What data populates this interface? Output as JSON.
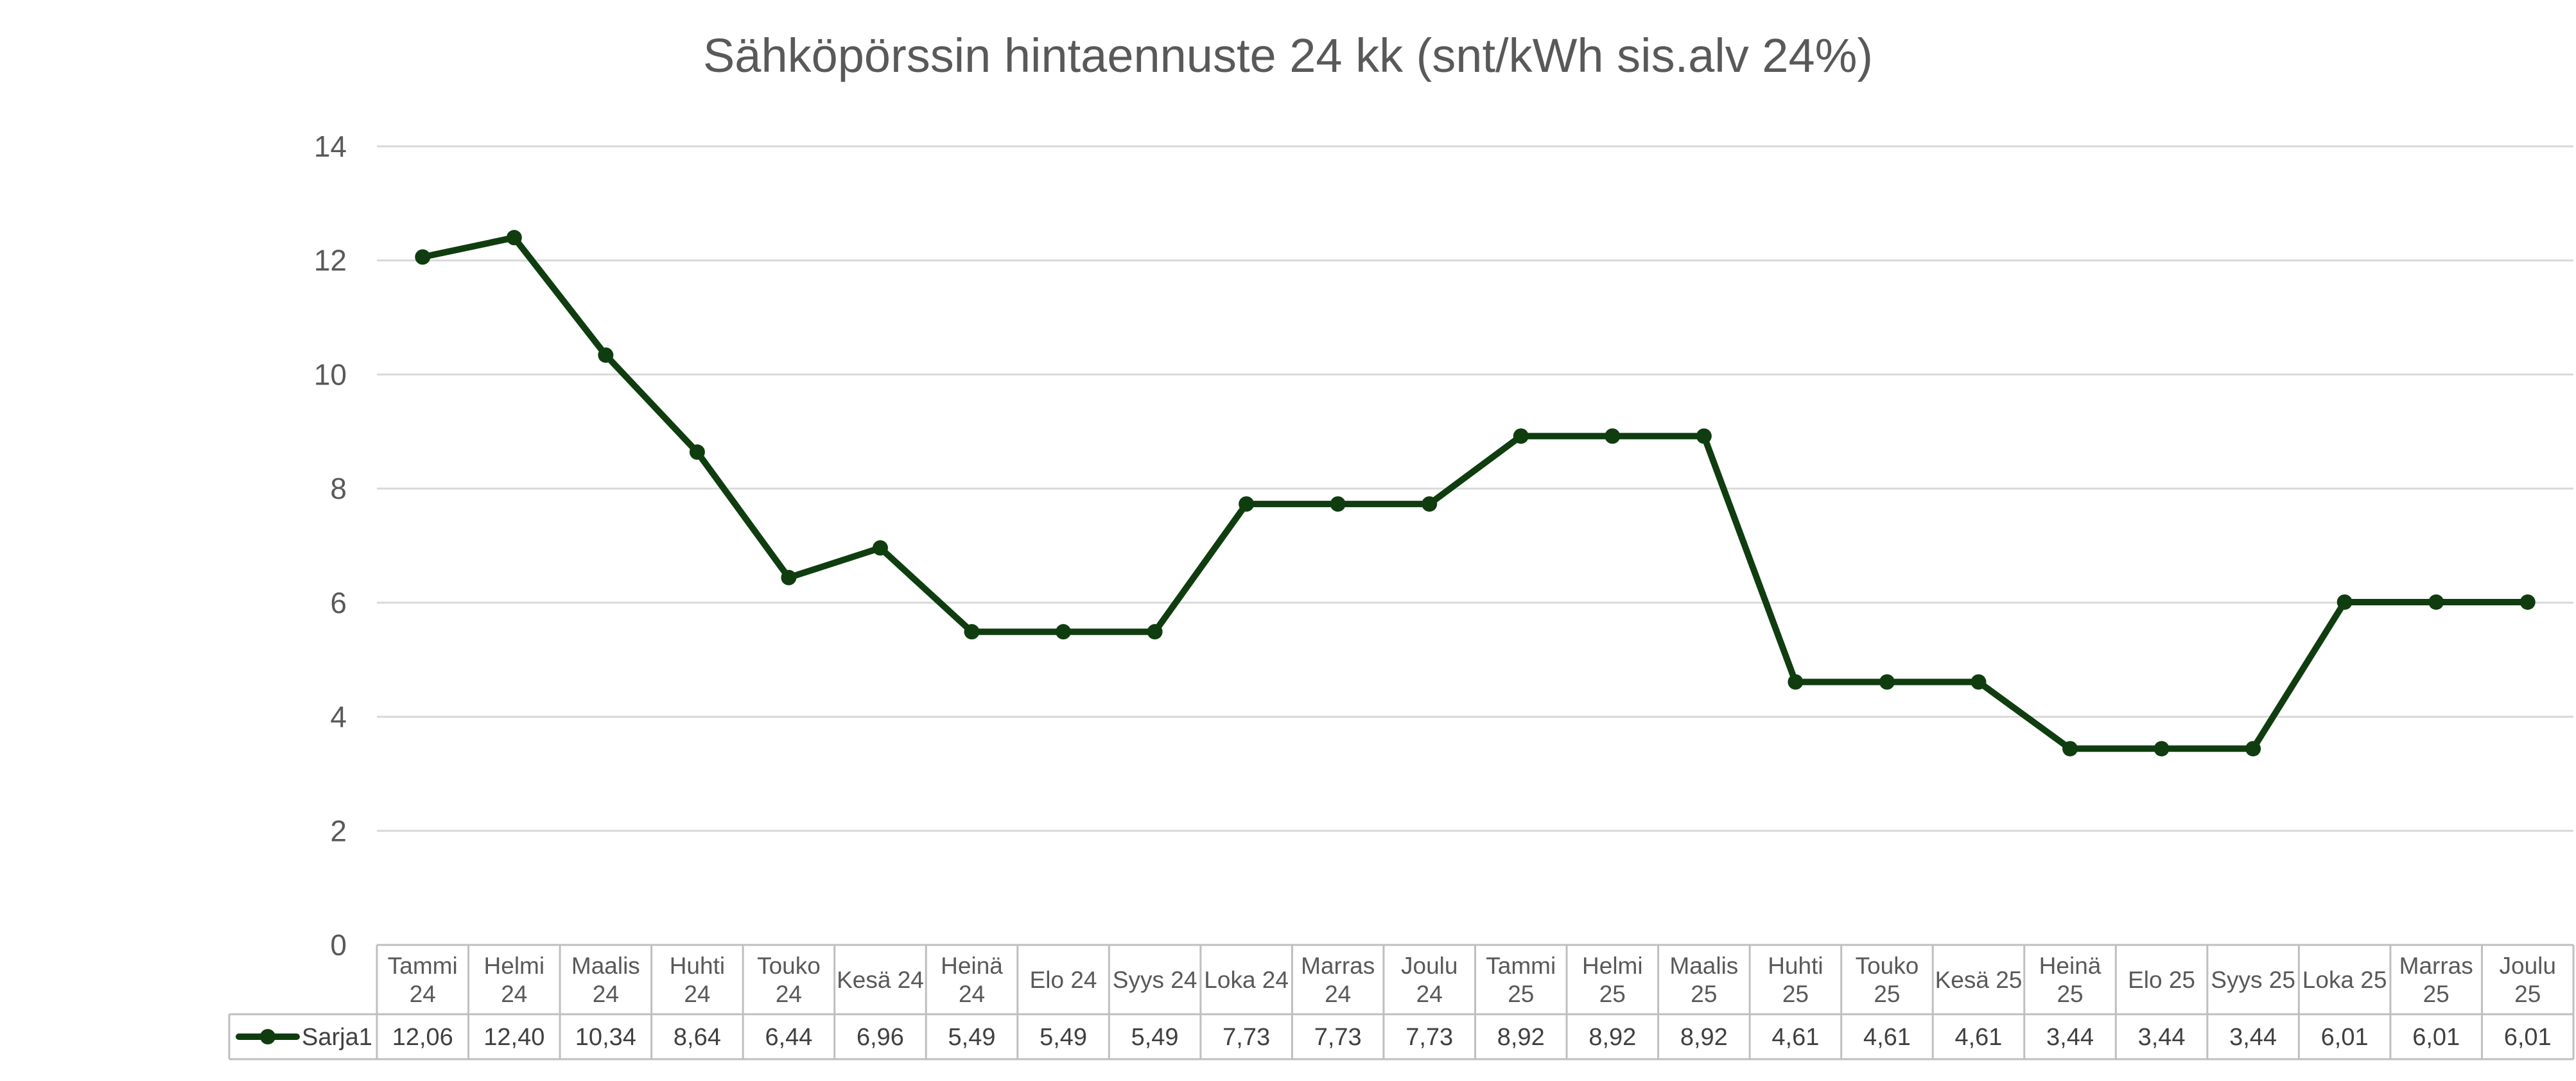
{
  "chart_data": {
    "type": "line",
    "title": "Sähköpörssin hintaennuste 24 kk (snt/kWh sis.alv 24%)",
    "xlabel": "",
    "ylabel": "",
    "ylim": [
      0,
      14
    ],
    "yticks": [
      "0",
      "2",
      "4",
      "6",
      "8",
      "10",
      "12",
      "14"
    ],
    "grid": true,
    "legend": "bottom-left (data table)",
    "categories": [
      [
        "Tammi",
        "24"
      ],
      [
        "Helmi",
        "24"
      ],
      [
        "Maalis",
        "24"
      ],
      [
        "Huhti",
        "24"
      ],
      [
        "Touko",
        "24"
      ],
      [
        "Kesä 24"
      ],
      [
        "Heinä",
        "24"
      ],
      [
        "Elo 24"
      ],
      [
        "Syys 24"
      ],
      [
        "Loka 24"
      ],
      [
        "Marras",
        "24"
      ],
      [
        "Joulu",
        "24"
      ],
      [
        "Tammi",
        "25"
      ],
      [
        "Helmi",
        "25"
      ],
      [
        "Maalis",
        "25"
      ],
      [
        "Huhti",
        "25"
      ],
      [
        "Touko",
        "25"
      ],
      [
        "Kesä 25"
      ],
      [
        "Heinä",
        "25"
      ],
      [
        "Elo 25"
      ],
      [
        "Syys 25"
      ],
      [
        "Loka 25"
      ],
      [
        "Marras",
        "25"
      ],
      [
        "Joulu",
        "25"
      ]
    ],
    "series": [
      {
        "name": "Sarja1",
        "color": "#0f3d0f",
        "values": [
          12.06,
          12.4,
          10.34,
          8.64,
          6.44,
          6.96,
          5.49,
          5.49,
          5.49,
          7.73,
          7.73,
          7.73,
          8.92,
          8.92,
          8.92,
          4.61,
          4.61,
          4.61,
          3.44,
          3.44,
          3.44,
          6.01,
          6.01,
          6.01
        ],
        "labels": [
          "12,06",
          "12,40",
          "10,34",
          "8,64",
          "6,44",
          "6,96",
          "5,49",
          "5,49",
          "5,49",
          "7,73",
          "7,73",
          "7,73",
          "8,92",
          "8,92",
          "8,92",
          "4,61",
          "4,61",
          "4,61",
          "3,44",
          "3,44",
          "3,44",
          "6,01",
          "6,01",
          "6,01"
        ]
      }
    ]
  }
}
